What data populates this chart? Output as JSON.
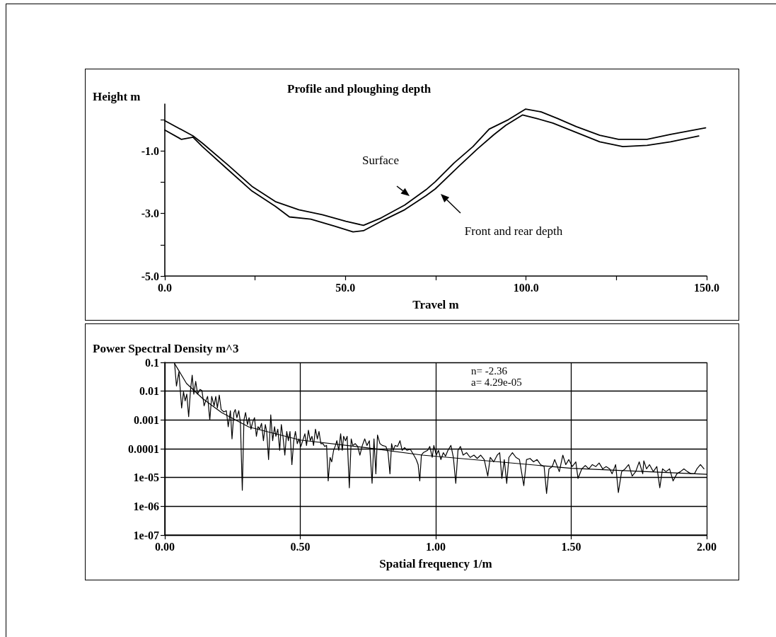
{
  "chart_data": [
    {
      "type": "line",
      "title": "Profile and ploughing depth",
      "xlabel": "Travel m",
      "ylabel": "Height m",
      "xlim": [
        0,
        150
      ],
      "xticks": [
        {
          "value": 0,
          "label": "0.0"
        },
        {
          "value": 25,
          "label": null
        },
        {
          "value": 50,
          "label": "50.0"
        },
        {
          "value": 75,
          "label": null
        },
        {
          "value": 100,
          "label": "100.0"
        },
        {
          "value": 125,
          "label": null
        },
        {
          "value": 150,
          "label": "150.0"
        }
      ],
      "ylim": [
        -5,
        0.5
      ],
      "yticks": [
        {
          "value": -5,
          "label": "-5.0"
        },
        {
          "value": -4,
          "label": null
        },
        {
          "value": -3,
          "label": "-3.0"
        },
        {
          "value": -2,
          "label": null
        },
        {
          "value": -1,
          "label": "-1.0"
        },
        {
          "value": 0,
          "label": null
        }
      ],
      "line_style": "solid",
      "annotations": [
        "Surface",
        "Front and rear depth"
      ],
      "series": [
        {
          "color": "#000000",
          "x": [
            0,
            7.8,
            10.4,
            17.6,
            24.1,
            30.6,
            37.1,
            43.6,
            50.1,
            55.0,
            59.9,
            66.4,
            72.3,
            74.9,
            80.1,
            85.3,
            89.8,
            95.1,
            99.9,
            104.2,
            108.7,
            113.9,
            120.4,
            125.6,
            133.5,
            140.0,
            149.7
          ],
          "values": [
            -0.03,
            -0.52,
            -0.75,
            -1.46,
            -2.13,
            -2.62,
            -2.88,
            -3.04,
            -3.25,
            -3.38,
            -3.14,
            -2.73,
            -2.24,
            -1.98,
            -1.38,
            -0.86,
            -0.3,
            0.0,
            0.34,
            0.25,
            0.04,
            -0.22,
            -0.5,
            -0.63,
            -0.63,
            -0.47,
            -0.26
          ]
        },
        {
          "color": "#000000",
          "x": [
            0,
            4.6,
            7.8,
            10.4,
            17.6,
            24.1,
            30.6,
            34.5,
            40.4,
            46.9,
            52.1,
            55.0,
            59.9,
            66.4,
            72.3,
            74.9,
            81.4,
            86.6,
            91.1,
            94.4,
            99.0,
            102.9,
            107.4,
            113.9,
            120.4,
            126.8,
            133.5,
            140.0,
            147.8
          ],
          "values": [
            -0.33,
            -0.63,
            -0.56,
            -0.86,
            -1.61,
            -2.28,
            -2.77,
            -3.11,
            -3.18,
            -3.4,
            -3.59,
            -3.55,
            -3.25,
            -2.88,
            -2.43,
            -2.21,
            -1.49,
            -0.93,
            -0.48,
            -0.18,
            0.15,
            0.04,
            -0.11,
            -0.41,
            -0.71,
            -0.86,
            -0.82,
            -0.71,
            -0.52
          ]
        }
      ]
    },
    {
      "type": "line",
      "xlabel": "Spatial frequency 1/m",
      "ylabel": "Power Spectral Density m^3",
      "log": "y",
      "grid": true,
      "xlim": [
        0,
        2
      ],
      "xticks": [
        {
          "value": 0,
          "label": "0.00"
        },
        {
          "value": 0.5,
          "label": "0.50"
        },
        {
          "value": 1,
          "label": "1.00"
        },
        {
          "value": 1.5,
          "label": "1.50"
        },
        {
          "value": 2,
          "label": "2.00"
        }
      ],
      "ylim": [
        1e-07,
        0.1
      ],
      "yticks": [
        {
          "value": 1e-07,
          "label": "1e-07"
        },
        {
          "value": 1e-06,
          "label": "1e-06"
        },
        {
          "value": 1e-05,
          "label": "1e-05"
        },
        0.0001,
        0.001,
        0.01,
        0.1
      ],
      "line_style": "solid",
      "annotations": [
        "n= -2.36",
        "a= 4.29e-05"
      ],
      "series": [
        {
          "color": "#000000",
          "x": [
            0.036,
            0.043,
            0.052,
            0.062,
            0.069,
            0.075,
            0.081,
            0.088,
            0.095,
            0.101,
            0.107,
            0.114,
            0.121,
            0.13,
            0.137,
            0.145,
            0.151,
            0.158,
            0.166,
            0.173,
            0.182,
            0.188,
            0.194,
            0.201,
            0.208,
            0.218,
            0.227,
            0.234,
            0.242,
            0.248,
            0.255,
            0.26,
            0.266,
            0.273,
            0.279,
            0.286,
            0.292,
            0.298,
            0.305,
            0.311,
            0.318,
            0.324,
            0.331,
            0.338,
            0.344,
            0.35,
            0.357,
            0.364,
            0.371,
            0.376,
            0.383,
            0.391,
            0.398,
            0.405,
            0.41,
            0.417,
            0.424,
            0.43,
            0.436,
            0.443,
            0.45,
            0.456,
            0.462,
            0.469,
            0.476,
            0.482,
            0.489,
            0.495,
            0.502,
            0.509,
            0.517,
            0.523,
            0.53,
            0.537,
            0.543,
            0.549,
            0.556,
            0.563,
            0.569,
            0.576,
            0.584,
            0.59,
            0.597,
            0.603,
            0.61,
            0.616,
            0.623,
            0.63,
            0.635,
            0.642,
            0.649,
            0.655,
            0.66,
            0.667,
            0.673,
            0.681,
            0.688,
            0.694,
            0.703,
            0.712,
            0.72,
            0.729,
            0.738,
            0.746,
            0.755,
            0.765,
            0.772,
            0.779,
            0.785,
            0.794,
            0.803,
            0.816,
            0.824,
            0.831,
            0.837,
            0.843,
            0.85,
            0.859,
            0.868,
            0.876,
            0.885,
            0.894,
            0.906,
            0.919,
            0.928,
            0.935,
            0.941,
            0.947,
            0.954,
            0.97,
            0.978,
            0.987,
            0.993,
            1.002,
            1.01,
            1.019,
            1.028,
            1.036,
            1.045,
            1.056,
            1.065,
            1.074,
            1.082,
            1.091,
            1.101,
            1.114,
            1.127,
            1.141,
            1.153,
            1.166,
            1.179,
            1.192,
            1.201,
            1.214,
            1.227,
            1.236,
            1.244,
            1.253,
            1.262,
            1.27,
            1.283,
            1.296,
            1.309,
            1.325,
            1.335,
            1.348,
            1.361,
            1.374,
            1.387,
            1.4,
            1.409,
            1.418,
            1.43,
            1.439,
            1.456,
            1.469,
            1.48,
            1.491,
            1.504,
            1.517,
            1.525,
            1.539,
            1.552,
            1.565,
            1.578,
            1.591,
            1.603,
            1.616,
            1.629,
            1.642,
            1.651,
            1.664,
            1.674,
            1.686,
            1.699,
            1.712,
            1.725,
            1.738,
            1.751,
            1.764,
            1.768,
            1.778,
            1.789,
            1.803,
            1.816,
            1.827,
            1.837,
            1.85,
            1.863,
            1.876,
            1.89,
            1.903,
            1.916,
            1.929,
            1.942,
            1.955,
            1.964,
            1.977,
            1.99
          ],
          "values": [
            0.091,
            0.015,
            0.047,
            0.0026,
            0.0095,
            0.0046,
            0.0079,
            0.0013,
            0.0115,
            0.036,
            0.0079,
            0.022,
            0.0079,
            0.0115,
            0.0105,
            0.0031,
            0.0046,
            0.0066,
            0.001,
            0.0066,
            0.0031,
            0.0066,
            0.0026,
            0.0073,
            0.0023,
            0.0019,
            0.0021,
            0.00058,
            0.0021,
            0.00022,
            0.0018,
            0.0023,
            0.0012,
            0.0021,
            0.00083,
            3.6e-06,
            0.001,
            0.0018,
            0.00069,
            0.0012,
            0.00048,
            0.00083,
            0.0012,
            0.00027,
            0.00058,
            0.00048,
            0.00076,
            0.00019,
            0.00069,
            0.0004,
            4.2e-05,
            0.0015,
            0.00019,
            0.00058,
            0.00027,
            0.00048,
            8.8e-05,
            0.00069,
            0.00027,
            6e-05,
            0.0004,
            0.00019,
            0.0004,
            2.8e-05,
            0.00019,
            0.0004,
            0.00015,
            0.00022,
            0.00012,
            0.00019,
            0.00033,
            0.00013,
            0.00044,
            0.00019,
            0.00027,
            0.00013,
            0.00048,
            0.00022,
            0.0004,
            0.00015,
            0.00015,
            0.00012,
            0.00013,
            7.6e-06,
            5e-05,
            3.5e-05,
            8.8e-05,
            0.00013,
            0.00019,
            8.8e-05,
            0.00033,
            8.8e-05,
            0.00027,
            0.00019,
            0.00027,
            4.4e-06,
            0.00022,
            0.00013,
            0.00015,
            0.00012,
            6e-05,
            0.00013,
            0.00022,
            0.00013,
            0.00019,
            6.3e-06,
            0.00022,
            1.35e-05,
            0.0003,
            0.00015,
            0.00013,
            0.00012,
            7.3e-05,
            1.35e-05,
            0.00015,
            8.8e-05,
            0.00013,
            0.00012,
            0.00019,
            8.8e-05,
            0.00011,
            8.8e-05,
            9.6e-05,
            6e-05,
            4.2e-05,
            2.8e-05,
            7.6e-06,
            6e-05,
            7.3e-05,
            8.8e-05,
            0.00012,
            5e-05,
            0.00013,
            6e-05,
            8.8e-05,
            4.2e-05,
            7.3e-05,
            5.5e-05,
            8.8e-05,
            0.00013,
            5e-05,
            6.3e-06,
            8.8e-05,
            0.00012,
            6e-05,
            7.3e-05,
            5e-05,
            6e-05,
            4.6e-05,
            6e-05,
            4.2e-05,
            1.12e-05,
            5e-05,
            3.5e-05,
            6e-05,
            7.3e-05,
            9.3e-06,
            4.2e-05,
            6.3e-06,
            5e-05,
            7.3e-05,
            5e-05,
            4.2e-05,
            5.2e-06,
            4.2e-05,
            4.6e-05,
            3.5e-05,
            4.2e-05,
            2.8e-05,
            2.4e-05,
            2.8e-06,
            2e-05,
            2.4e-05,
            4.2e-05,
            1.6e-05,
            6e-05,
            2.8e-05,
            4.2e-05,
            2.4e-05,
            3.5e-05,
            9.3e-06,
            2e-05,
            2.6e-05,
            2e-05,
            2.8e-05,
            2.4e-05,
            3.2e-05,
            2e-05,
            2.4e-05,
            2e-05,
            1.35e-05,
            2.8e-05,
            3e-06,
            1.6e-05,
            2e-05,
            2.8e-05,
            1.12e-05,
            1.6e-05,
            3.5e-05,
            1.35e-05,
            3.8e-05,
            2e-05,
            2.8e-05,
            1.6e-05,
            2.4e-05,
            4.4e-06,
            2e-05,
            1.6e-05,
            2e-05,
            7.6e-06,
            1.35e-05,
            1.6e-05,
            2e-05,
            1.6e-05,
            1.35e-05,
            1.35e-05,
            2e-05,
            2.8e-05,
            2e-05
          ]
        },
        {
          "color": "#000000",
          "x": [
            0.036,
            0.08,
            0.14,
            0.21,
            0.31,
            0.5,
            0.75,
            0.95,
            1.5,
            2.0
          ],
          "values": [
            0.091,
            0.0186,
            0.0055,
            0.0018,
            0.00057,
            0.0002,
            0.000107,
            6e-05,
            2.1e-05,
            1.3e-05
          ]
        }
      ]
    }
  ]
}
